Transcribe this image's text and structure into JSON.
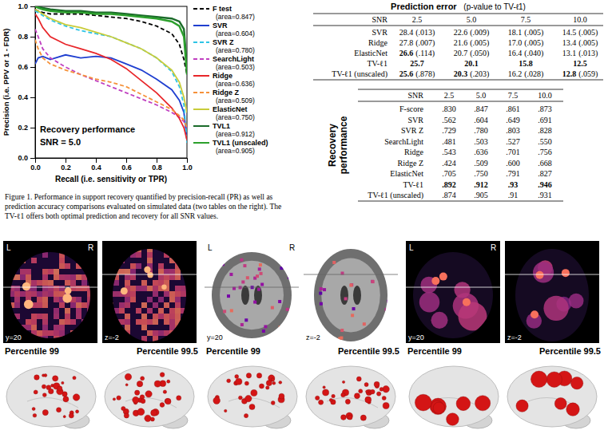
{
  "chart_data": {
    "type": "line",
    "x_label": "Recall (i.e. sensitivity or TPR)",
    "y_label": "Precision (i.e. PPV or 1 - FDR)",
    "annotations": [
      "Recovery performance",
      "SNR = 5.0"
    ],
    "x": [
      0,
      0.02,
      0.05,
      0.1,
      0.2,
      0.3,
      0.4,
      0.5,
      0.6,
      0.7,
      0.8,
      0.9,
      0.95,
      0.98,
      1.0
    ],
    "xlim": [
      0,
      1
    ],
    "ylim": [
      0,
      1
    ],
    "xticks": [
      {
        "value": 0,
        "label": "0.0"
      },
      {
        "value": 0.2,
        "label": "0.2"
      },
      {
        "value": 0.4,
        "label": "0.4"
      },
      {
        "value": 0.6,
        "label": "0.6"
      },
      {
        "value": 0.8,
        "label": "0.8"
      },
      {
        "value": 1,
        "label": "1.0"
      }
    ],
    "yticks": [
      {
        "value": 0,
        "label": "0.0"
      },
      {
        "value": 0.2,
        "label": "0.2"
      },
      {
        "value": 0.4,
        "label": "0.4"
      },
      {
        "value": 0.6,
        "label": "0.6"
      },
      {
        "value": 0.8,
        "label": "0.8"
      },
      {
        "value": 1,
        "label": "1.0"
      }
    ],
    "grid": false,
    "legend": "right",
    "series": [
      {
        "name": "F test",
        "area_label": "(area=0.847)",
        "color": "#000000",
        "line_style": "dashed",
        "values": [
          0.98,
          0.97,
          0.96,
          0.95,
          0.95,
          0.95,
          0.94,
          0.93,
          0.92,
          0.9,
          0.87,
          0.82,
          0.75,
          0.65,
          0.55
        ]
      },
      {
        "name": "SVR",
        "area_label": "(area=0.604)",
        "color": "#1f3fd0",
        "line_style": "solid",
        "values": [
          0.62,
          0.66,
          0.67,
          0.65,
          0.68,
          0.66,
          0.67,
          0.66,
          0.62,
          0.58,
          0.52,
          0.45,
          0.38,
          0.3,
          0.12
        ]
      },
      {
        "name": "SVR Z",
        "area_label": "(area=0.780)",
        "color": "#2ec4e6",
        "line_style": "dashed",
        "values": [
          0.97,
          0.96,
          0.94,
          0.91,
          0.87,
          0.84,
          0.82,
          0.8,
          0.76,
          0.72,
          0.66,
          0.57,
          0.47,
          0.35,
          0.1
        ]
      },
      {
        "name": "SearchLight",
        "area_label": "(area=0.503)",
        "color": "#c040c0",
        "line_style": "dashed",
        "values": [
          0.85,
          0.8,
          0.72,
          0.66,
          0.6,
          0.55,
          0.51,
          0.47,
          0.43,
          0.39,
          0.35,
          0.3,
          0.27,
          0.24,
          0.2
        ]
      },
      {
        "name": "Ridge",
        "area_label": "(area=0.636)",
        "color": "#e8262a",
        "line_style": "solid",
        "values": [
          0.95,
          0.92,
          0.86,
          0.8,
          0.75,
          0.72,
          0.69,
          0.65,
          0.59,
          0.51,
          0.43,
          0.33,
          0.26,
          0.2,
          0.12
        ]
      },
      {
        "name": "Ridge Z",
        "area_label": "(area=0.509)",
        "color": "#f5913a",
        "line_style": "dashed",
        "values": [
          0.78,
          0.72,
          0.66,
          0.62,
          0.58,
          0.55,
          0.52,
          0.5,
          0.47,
          0.42,
          0.37,
          0.32,
          0.28,
          0.25,
          0.2
        ]
      },
      {
        "name": "ElasticNet",
        "area_label": "(area=0.750)",
        "color": "#c8cc3a",
        "line_style": "solid",
        "values": [
          0.98,
          0.97,
          0.95,
          0.92,
          0.88,
          0.86,
          0.83,
          0.8,
          0.76,
          0.72,
          0.66,
          0.58,
          0.5,
          0.4,
          0.3
        ]
      },
      {
        "name": "TVL1",
        "area_label": "(area=0.912)",
        "color": "#1b6b2a",
        "line_style": "solid",
        "values": [
          1.0,
          1.0,
          0.99,
          0.98,
          0.97,
          0.97,
          0.96,
          0.96,
          0.95,
          0.94,
          0.93,
          0.92,
          0.9,
          0.85,
          0.6
        ]
      },
      {
        "name": "TVL1 (unscaled)",
        "area_label": "(area=0.905)",
        "color": "#2ca02c",
        "line_style": "solid",
        "values": [
          1.0,
          0.99,
          0.98,
          0.97,
          0.96,
          0.96,
          0.95,
          0.95,
          0.94,
          0.93,
          0.92,
          0.9,
          0.87,
          0.8,
          0.55
        ]
      }
    ]
  },
  "caption": "Figure 1.  Performance in support recovery quantified by precision-recall (PR) as well as prediction accuracy comparisons evaluated on simulated data (two tables on the right). The TV-ℓ1 offers both optimal prediction and recovery for all SNR values.",
  "tables": [
    {
      "title": "Prediction error",
      "subtitle": "(p-value to TV-ℓ1)",
      "header": [
        "SNR",
        "2.5",
        "5.0",
        "7.5",
        "10.0"
      ],
      "rows": [
        {
          "label": "SVR",
          "cells": [
            {
              "text": "28.4",
              "p": "(.013)"
            },
            {
              "text": "22.6",
              "p": "(.009)"
            },
            {
              "text": "18.1",
              "p": "(.005)"
            },
            {
              "text": "14.5",
              "p": "(.005)"
            }
          ]
        },
        {
          "label": "Ridge",
          "cells": [
            {
              "text": "27.8",
              "p": "(.007)"
            },
            {
              "text": "21.6",
              "p": "(.005)"
            },
            {
              "text": "17.0",
              "p": "(.005)"
            },
            {
              "text": "13.4",
              "p": "(.005)"
            }
          ]
        },
        {
          "label": "ElasticNet",
          "cells": [
            {
              "text": "26.6",
              "p": "(.114)",
              "bold": true
            },
            {
              "text": "20.7",
              "p": "(.050)"
            },
            {
              "text": "16.4",
              "p": "(.040)"
            },
            {
              "text": "13.1",
              "p": "(.013)"
            }
          ]
        },
        {
          "label": "TV-ℓ1",
          "cells": [
            {
              "text": "25.7",
              "bold": true
            },
            {
              "text": "20.1",
              "bold": true
            },
            {
              "text": "15.8",
              "bold": true
            },
            {
              "text": "12.5",
              "bold": true
            }
          ]
        },
        {
          "label": "TV-ℓ1 (unscaled)",
          "cells": [
            {
              "text": "25.6",
              "p": "(.878)",
              "bold": true
            },
            {
              "text": "20.3",
              "p": "(.203)",
              "bold": true
            },
            {
              "text": "16.2",
              "p": "(.028)"
            },
            {
              "text": "12.8",
              "p": "(.059)",
              "bold": true
            }
          ]
        }
      ]
    },
    {
      "side_label": "Recovery performance",
      "header": [
        "SNR",
        "2.5",
        "5.0",
        "7.5",
        "10.0"
      ],
      "rows": [
        {
          "label": "F-score",
          "cells": [
            {
              "text": ".830"
            },
            {
              "text": ".847"
            },
            {
              "text": ".861"
            },
            {
              "text": ".873"
            }
          ]
        },
        {
          "label": "SVR",
          "cells": [
            {
              "text": ".562"
            },
            {
              "text": ".604"
            },
            {
              "text": ".649"
            },
            {
              "text": ".691"
            }
          ]
        },
        {
          "label": "SVR Z",
          "cells": [
            {
              "text": ".729"
            },
            {
              "text": ".780"
            },
            {
              "text": ".803"
            },
            {
              "text": ".828"
            }
          ]
        },
        {
          "label": "SearchLight",
          "cells": [
            {
              "text": ".481"
            },
            {
              "text": ".503"
            },
            {
              "text": ".527"
            },
            {
              "text": ".550"
            }
          ]
        },
        {
          "label": "Ridge",
          "cells": [
            {
              "text": ".543"
            },
            {
              "text": ".636"
            },
            {
              "text": ".701"
            },
            {
              "text": ".756"
            }
          ]
        },
        {
          "label": "Ridge Z",
          "cells": [
            {
              "text": ".424"
            },
            {
              "text": ".509"
            },
            {
              "text": ".600"
            },
            {
              "text": ".668"
            }
          ]
        },
        {
          "label": "ElasticNet",
          "cells": [
            {
              "text": ".705"
            },
            {
              "text": ".750"
            },
            {
              "text": ".791"
            },
            {
              "text": ".827"
            }
          ]
        },
        {
          "label": "TV-ℓ1",
          "cells": [
            {
              "text": ".892",
              "bold": true
            },
            {
              "text": ".912",
              "bold": true
            },
            {
              "text": ".93",
              "bold": true
            },
            {
              "text": ".946",
              "bold": true
            }
          ]
        },
        {
          "label": "TV-ℓ1 (unscaled)",
          "cells": [
            {
              "text": ".874"
            },
            {
              "text": ".905"
            },
            {
              "text": ".91"
            },
            {
              "text": ".931"
            }
          ]
        }
      ]
    }
  ],
  "brain_panels": [
    {
      "slices": [
        {
          "labels": [
            "L",
            "R"
          ],
          "coord": "y=20"
        },
        {
          "coord": "z=-2"
        }
      ],
      "renders": [
        "Percentile 99",
        "Percentile 99.5"
      ]
    },
    {
      "slices": [
        {
          "labels": [
            "L",
            "R"
          ],
          "coord": "y=20"
        },
        {
          "coord": "z=-2"
        }
      ],
      "renders": [
        "Percentile 99",
        "Percentile 99.5"
      ]
    },
    {
      "slices": [
        {
          "labels": [
            "L",
            "R"
          ],
          "coord": "y=20"
        },
        {
          "coord": "z=-2"
        }
      ],
      "renders": [
        "Percentile 99",
        "Percentile 99.5"
      ]
    }
  ]
}
